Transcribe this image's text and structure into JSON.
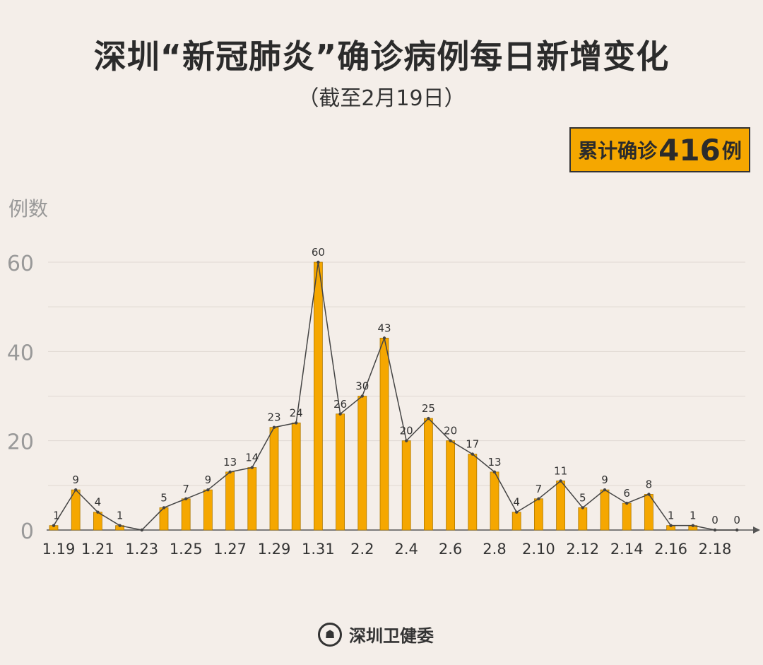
{
  "header": {
    "title": "深圳“新冠肺炎”确诊病例每日新增变化",
    "subtitle": "（截至2月19日）"
  },
  "badge": {
    "prefix": "累计确诊",
    "number": "416",
    "suffix": "例"
  },
  "footer": {
    "org": "深圳卫健委"
  },
  "colors": {
    "bar": "#f5a700",
    "line": "#444444",
    "background": "#f4eee9"
  },
  "chart_data": {
    "type": "bar+line",
    "title": "深圳“新冠肺炎”确诊病例每日新增变化",
    "ylabel": "例数",
    "xlabel": "",
    "ylim": [
      0,
      60
    ],
    "yticks": [
      0,
      20,
      40,
      60
    ],
    "grid": true,
    "categories": [
      "1.19",
      "1.20",
      "1.21",
      "1.22",
      "1.23",
      "1.24",
      "1.25",
      "1.26",
      "1.27",
      "1.28",
      "1.29",
      "1.30",
      "1.31",
      "2.1",
      "2.2",
      "2.3",
      "2.4",
      "2.5",
      "2.6",
      "2.7",
      "2.8",
      "2.9",
      "2.10",
      "2.11",
      "2.12",
      "2.13",
      "2.14",
      "2.15",
      "2.16",
      "2.17",
      "2.18",
      "2.19"
    ],
    "tick_labels": [
      "1.19",
      "1.21",
      "1.23",
      "1.25",
      "1.27",
      "1.29",
      "1.31",
      "2.2",
      "2.4",
      "2.6",
      "2.8",
      "2.10",
      "2.12",
      "2.14",
      "2.16",
      "2.18"
    ],
    "values": [
      1,
      9,
      4,
      1,
      0,
      5,
      7,
      9,
      13,
      14,
      23,
      24,
      60,
      26,
      30,
      43,
      20,
      25,
      20,
      17,
      13,
      4,
      7,
      11,
      5,
      9,
      6,
      8,
      1,
      1,
      0,
      0
    ],
    "data_labels_hidden": [
      "1.23"
    ]
  }
}
